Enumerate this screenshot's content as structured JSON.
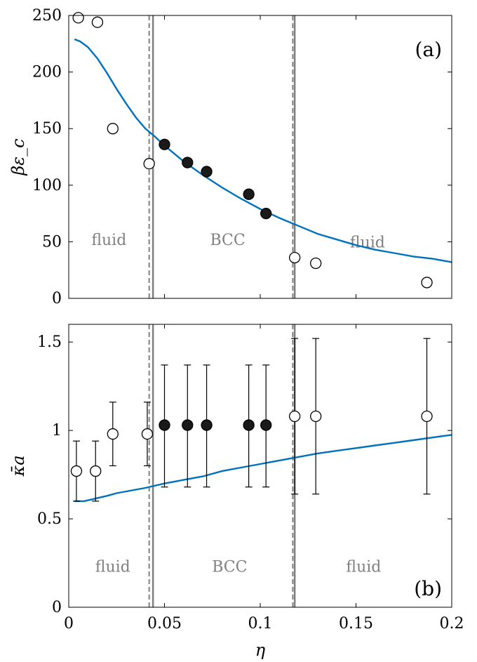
{
  "chart_data": [
    {
      "type": "scatter",
      "panel_label": "(a)",
      "ylabel": "βε_c",
      "xlim": [
        0,
        0.2
      ],
      "ylim": [
        0,
        250
      ],
      "yticks": [
        0,
        50,
        100,
        150,
        200,
        250
      ],
      "grid": false,
      "boundaries": {
        "dashed": [
          0.042,
          0.117
        ],
        "solid": [
          0.044,
          0.118
        ]
      },
      "regions": [
        {
          "label": "fluid",
          "x": 0.021,
          "y": 47
        },
        {
          "label": "BCC",
          "x": 0.083,
          "y": 47
        },
        {
          "label": "fluid",
          "x": 0.156,
          "y": 45
        }
      ],
      "open_points": {
        "x": [
          0.005,
          0.015,
          0.023,
          0.042,
          0.118,
          0.129,
          0.187
        ],
        "y": [
          248,
          244,
          150,
          119,
          36,
          31,
          14
        ]
      },
      "filled_points": {
        "x": [
          0.05,
          0.062,
          0.072,
          0.094,
          0.103
        ],
        "y": [
          136,
          120,
          112,
          92,
          75
        ]
      },
      "curve": {
        "x": [
          0.003,
          0.006,
          0.01,
          0.015,
          0.02,
          0.025,
          0.03,
          0.035,
          0.04,
          0.045,
          0.05,
          0.06,
          0.07,
          0.08,
          0.09,
          0.1,
          0.11,
          0.12,
          0.13,
          0.14,
          0.15,
          0.16,
          0.17,
          0.18,
          0.19,
          0.2
        ],
        "y": [
          229,
          227,
          222,
          212,
          199,
          185,
          172,
          160,
          150,
          143,
          135,
          121,
          109,
          98,
          88,
          79,
          71,
          64,
          57,
          52,
          47,
          43,
          40,
          37,
          35,
          32
        ]
      }
    },
    {
      "type": "scatter",
      "panel_label": "(b)",
      "xlabel": "η",
      "ylabel": "κ̄a",
      "xlim": [
        0,
        0.2
      ],
      "ylim": [
        0,
        1.6
      ],
      "yticks": [
        0,
        0.5,
        1,
        1.5
      ],
      "xticks": [
        0,
        0.05,
        0.1,
        0.15,
        0.2
      ],
      "grid": false,
      "boundaries": {
        "dashed": [
          0.042,
          0.117
        ],
        "solid": [
          0.044,
          0.118
        ]
      },
      "regions": [
        {
          "label": "fluid",
          "x": 0.023,
          "y": 0.2
        },
        {
          "label": "BCC",
          "x": 0.084,
          "y": 0.2
        },
        {
          "label": "fluid",
          "x": 0.154,
          "y": 0.2
        }
      ],
      "open_points": {
        "x": [
          0.004,
          0.014,
          0.023,
          0.041,
          0.118,
          0.129,
          0.187
        ],
        "y": [
          0.77,
          0.77,
          0.98,
          0.98,
          1.08,
          1.08,
          1.08
        ],
        "err_low": [
          0.6,
          0.6,
          0.8,
          0.8,
          0.64,
          0.64,
          0.64
        ],
        "err_high": [
          0.94,
          0.94,
          1.16,
          1.16,
          1.52,
          1.52,
          1.52
        ]
      },
      "filled_points": {
        "x": [
          0.05,
          0.062,
          0.072,
          0.094,
          0.103
        ],
        "y": [
          1.03,
          1.03,
          1.03,
          1.03,
          1.03
        ],
        "err_low": [
          0.68,
          0.68,
          0.68,
          0.68,
          0.68
        ],
        "err_high": [
          1.37,
          1.37,
          1.37,
          1.37,
          1.37
        ]
      },
      "curve": {
        "x": [
          0.003,
          0.008,
          0.012,
          0.016,
          0.02,
          0.025,
          0.03,
          0.035,
          0.04,
          0.05,
          0.06,
          0.07,
          0.08,
          0.09,
          0.1,
          0.11,
          0.12,
          0.13,
          0.14,
          0.15,
          0.16,
          0.17,
          0.18,
          0.19,
          0.2
        ],
        "y": [
          0.6,
          0.6,
          0.61,
          0.62,
          0.63,
          0.645,
          0.655,
          0.665,
          0.675,
          0.7,
          0.72,
          0.74,
          0.77,
          0.79,
          0.81,
          0.83,
          0.85,
          0.87,
          0.885,
          0.9,
          0.915,
          0.93,
          0.945,
          0.96,
          0.975
        ]
      }
    }
  ]
}
